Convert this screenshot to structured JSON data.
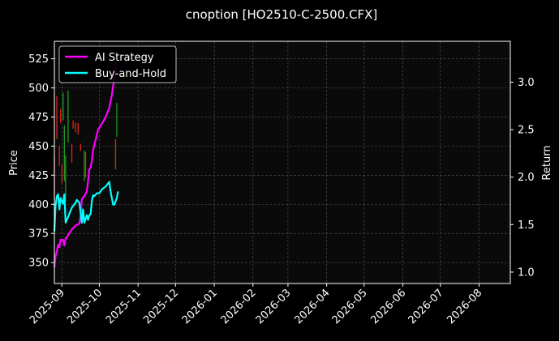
{
  "chart_data": {
    "type": "line",
    "title": "cnoption [HO2510-C-2500.CFX]",
    "left_axis": {
      "label": "Price",
      "range": [
        332,
        540
      ],
      "ticks": [
        350,
        375,
        400,
        425,
        450,
        475,
        500,
        525
      ]
    },
    "right_axis": {
      "label": "Return",
      "range": [
        0.88,
        3.43
      ],
      "ticks": [
        1.0,
        1.5,
        2.0,
        2.5,
        3.0
      ],
      "tick_labels": [
        "1.0",
        "1.5",
        "2.0",
        "2.5",
        "3.0"
      ]
    },
    "x_axis": {
      "range": [
        "2025-08-26",
        "2026-08-26"
      ],
      "ticks": [
        "2025-09-01",
        "2025-10-01",
        "2025-11-01",
        "2025-12-01",
        "2026-01-01",
        "2026-02-01",
        "2026-03-01",
        "2026-04-01",
        "2026-05-01",
        "2026-06-01",
        "2026-07-01",
        "2026-08-01"
      ],
      "tick_labels": [
        "2025-09",
        "2025-10",
        "2025-11",
        "2025-12",
        "2026-01",
        "2026-02",
        "2026-03",
        "2026-04",
        "2026-05",
        "2026-06",
        "2026-07",
        "2026-08"
      ]
    },
    "grid": true,
    "legend_placement": "top-left",
    "candles": [
      {
        "date": "2025-08-26",
        "low": 404,
        "high": 442,
        "color": "red"
      },
      {
        "date": "2025-08-28",
        "low": 456,
        "high": 493,
        "color": "red"
      },
      {
        "date": "2025-08-30",
        "low": 433,
        "high": 450,
        "color": "red"
      },
      {
        "date": "2025-08-31",
        "low": 470,
        "high": 482,
        "color": "red"
      },
      {
        "date": "2025-09-01",
        "low": 418,
        "high": 434,
        "color": "red"
      },
      {
        "date": "2025-09-02",
        "low": 472,
        "high": 496,
        "color": "green"
      },
      {
        "date": "2025-09-03",
        "low": 420,
        "high": 468,
        "color": "green"
      },
      {
        "date": "2025-09-04",
        "low": 402,
        "high": 442,
        "color": "green"
      },
      {
        "date": "2025-09-06",
        "low": 453,
        "high": 498,
        "color": "green"
      },
      {
        "date": "2025-09-09",
        "low": 436,
        "high": 452,
        "color": "red"
      },
      {
        "date": "2025-09-10",
        "low": 465,
        "high": 472,
        "color": "red"
      },
      {
        "date": "2025-09-12",
        "low": 462,
        "high": 470,
        "color": "red"
      },
      {
        "date": "2025-09-14",
        "low": 460,
        "high": 470,
        "color": "red"
      },
      {
        "date": "2025-09-16",
        "low": 446,
        "high": 452,
        "color": "red"
      },
      {
        "date": "2025-09-19",
        "low": 420,
        "high": 446,
        "color": "green"
      },
      {
        "date": "2025-09-20",
        "low": 423,
        "high": 445,
        "color": "red"
      },
      {
        "date": "2025-10-14",
        "low": 430,
        "high": 456,
        "color": "red"
      },
      {
        "date": "2025-10-15",
        "low": 458,
        "high": 487,
        "color": "green"
      }
    ],
    "series": [
      {
        "name": "AI Strategy",
        "color": "#ff00ff",
        "axis": "right",
        "x": [
          "2025-08-26",
          "2025-08-27",
          "2025-08-28",
          "2025-08-29",
          "2025-08-30",
          "2025-08-31",
          "2025-09-01",
          "2025-09-02",
          "2025-09-03",
          "2025-09-04",
          "2025-09-05",
          "2025-09-06",
          "2025-09-09",
          "2025-09-12",
          "2025-09-15",
          "2025-09-16",
          "2025-09-17",
          "2025-09-19",
          "2025-09-21",
          "2025-09-22",
          "2025-09-23",
          "2025-09-24",
          "2025-09-25",
          "2025-09-26",
          "2025-09-28",
          "2025-09-30",
          "2025-10-03",
          "2025-10-06",
          "2025-10-09",
          "2025-10-11",
          "2025-10-12",
          "2025-10-14",
          "2025-10-15"
        ],
        "values": [
          1.05,
          1.17,
          1.22,
          1.29,
          1.26,
          1.34,
          1.34,
          1.34,
          1.28,
          1.36,
          1.36,
          1.39,
          1.45,
          1.49,
          1.51,
          1.59,
          1.77,
          1.8,
          1.85,
          1.96,
          2.08,
          2.1,
          2.17,
          2.28,
          2.39,
          2.5,
          2.56,
          2.63,
          2.73,
          2.86,
          2.96,
          3.1,
          3.23
        ]
      },
      {
        "name": "Buy-and-Hold",
        "color": "#00ffff",
        "axis": "right",
        "x": [
          "2025-08-26",
          "2025-08-27",
          "2025-08-28",
          "2025-08-29",
          "2025-08-30",
          "2025-08-31",
          "2025-09-01",
          "2025-09-02",
          "2025-09-03",
          "2025-09-04",
          "2025-09-06",
          "2025-09-09",
          "2025-09-12",
          "2025-09-13",
          "2025-09-15",
          "2025-09-17",
          "2025-09-18",
          "2025-09-19",
          "2025-09-21",
          "2025-09-22",
          "2025-09-23",
          "2025-09-24",
          "2025-09-25",
          "2025-09-26",
          "2025-09-27",
          "2025-09-29",
          "2025-10-01",
          "2025-10-03",
          "2025-10-06",
          "2025-10-09",
          "2025-10-10",
          "2025-10-12",
          "2025-10-13",
          "2025-10-15",
          "2025-10-16"
        ],
        "values": [
          1.43,
          1.7,
          1.8,
          1.82,
          1.66,
          1.78,
          1.75,
          1.72,
          1.82,
          1.52,
          1.58,
          1.68,
          1.73,
          1.76,
          1.73,
          1.52,
          1.66,
          1.52,
          1.6,
          1.55,
          1.6,
          1.61,
          1.75,
          1.81,
          1.8,
          1.83,
          1.83,
          1.87,
          1.9,
          1.95,
          1.85,
          1.71,
          1.71,
          1.78,
          1.85
        ]
      }
    ]
  }
}
